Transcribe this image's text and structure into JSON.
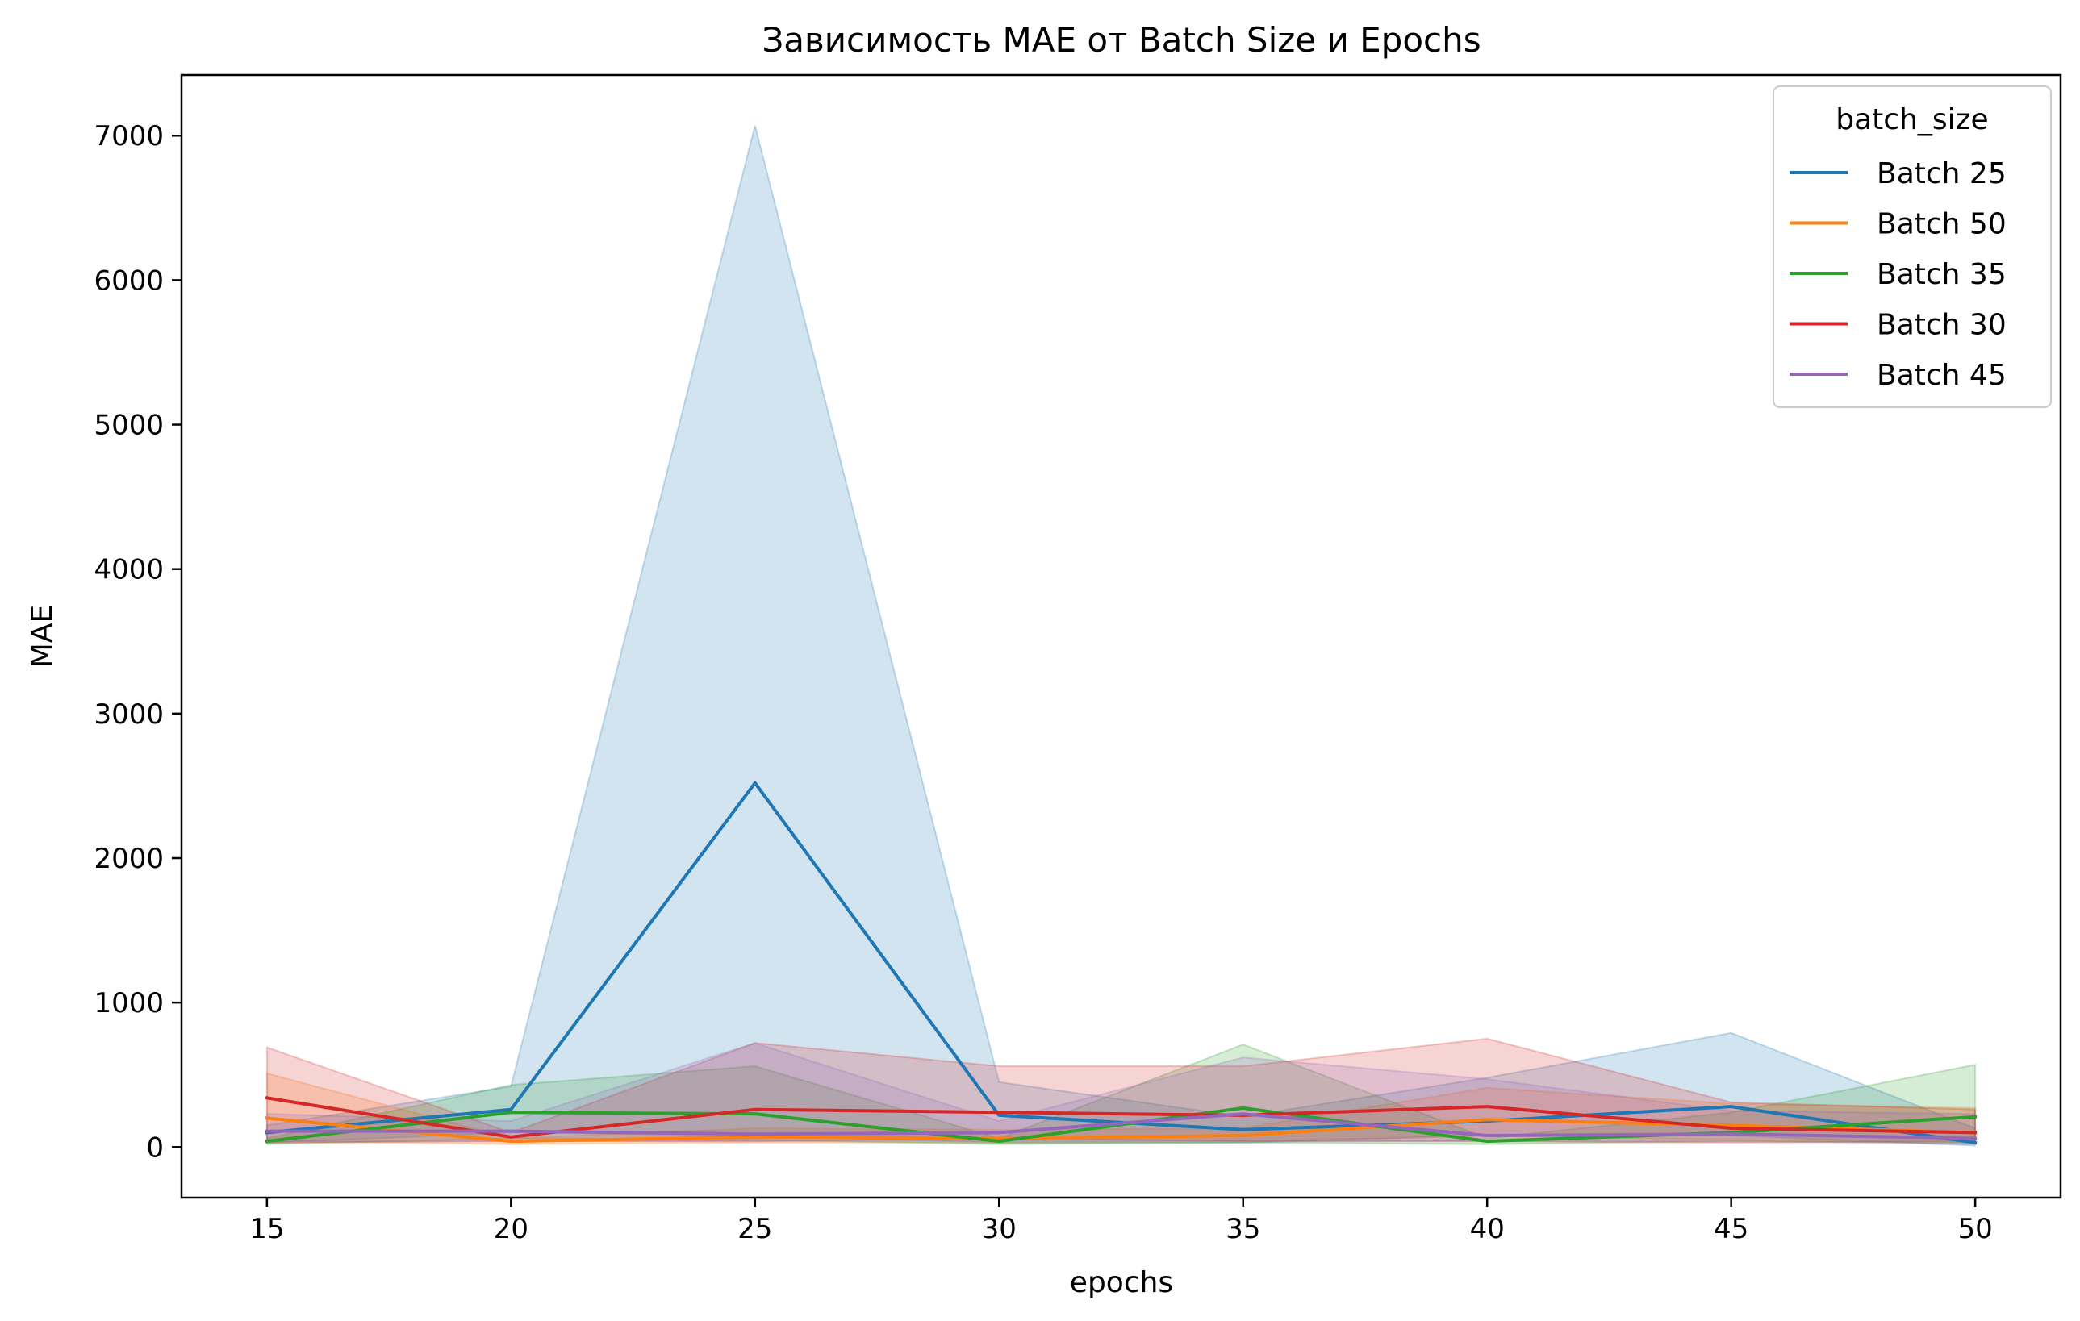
{
  "chart_data": {
    "type": "line",
    "title": "Зависимость MAE от Batch Size и Epochs",
    "xlabel": "epochs",
    "ylabel": "MAE",
    "x": [
      15,
      20,
      25,
      30,
      35,
      40,
      45,
      50
    ],
    "xticks": [
      15,
      20,
      25,
      30,
      35,
      40,
      45,
      50
    ],
    "yticks": [
      0,
      1000,
      2000,
      3000,
      4000,
      5000,
      6000,
      7000
    ],
    "xlim": [
      13.25,
      51.75
    ],
    "ylim": [
      -350,
      7420
    ],
    "grid": false,
    "legend": {
      "title": "batch_size",
      "position": "top-right"
    },
    "series": [
      {
        "name": "Batch 25",
        "color": "#1f77b4",
        "values": [
          100,
          260,
          2520,
          220,
          120,
          180,
          280,
          30
        ],
        "ci_low": [
          30,
          100,
          80,
          30,
          30,
          80,
          80,
          10
        ],
        "ci_high": [
          150,
          420,
          7070,
          450,
          210,
          480,
          790,
          130
        ]
      },
      {
        "name": "Batch 50",
        "color": "#ff7f0e",
        "values": [
          200,
          40,
          70,
          60,
          80,
          190,
          150,
          100
        ],
        "ci_low": [
          40,
          20,
          30,
          30,
          40,
          80,
          50,
          30
        ],
        "ci_high": [
          510,
          60,
          130,
          120,
          130,
          410,
          300,
          270
        ]
      },
      {
        "name": "Batch 35",
        "color": "#2ca02c",
        "values": [
          40,
          240,
          230,
          40,
          270,
          40,
          100,
          210
        ],
        "ci_low": [
          20,
          60,
          50,
          20,
          30,
          20,
          40,
          30
        ],
        "ci_high": [
          60,
          430,
          560,
          60,
          710,
          60,
          240,
          570
        ]
      },
      {
        "name": "Batch 30",
        "color": "#d62728",
        "values": [
          340,
          70,
          260,
          240,
          220,
          280,
          130,
          100
        ],
        "ci_low": [
          30,
          40,
          40,
          60,
          40,
          40,
          30,
          40
        ],
        "ci_high": [
          690,
          100,
          720,
          560,
          560,
          750,
          310,
          260
        ]
      },
      {
        "name": "Batch 45",
        "color": "#9467bd",
        "values": [
          110,
          110,
          90,
          100,
          230,
          80,
          90,
          60
        ],
        "ci_low": [
          40,
          40,
          40,
          40,
          40,
          40,
          40,
          20
        ],
        "ci_high": [
          230,
          180,
          720,
          180,
          620,
          470,
          250,
          230
        ]
      }
    ]
  }
}
